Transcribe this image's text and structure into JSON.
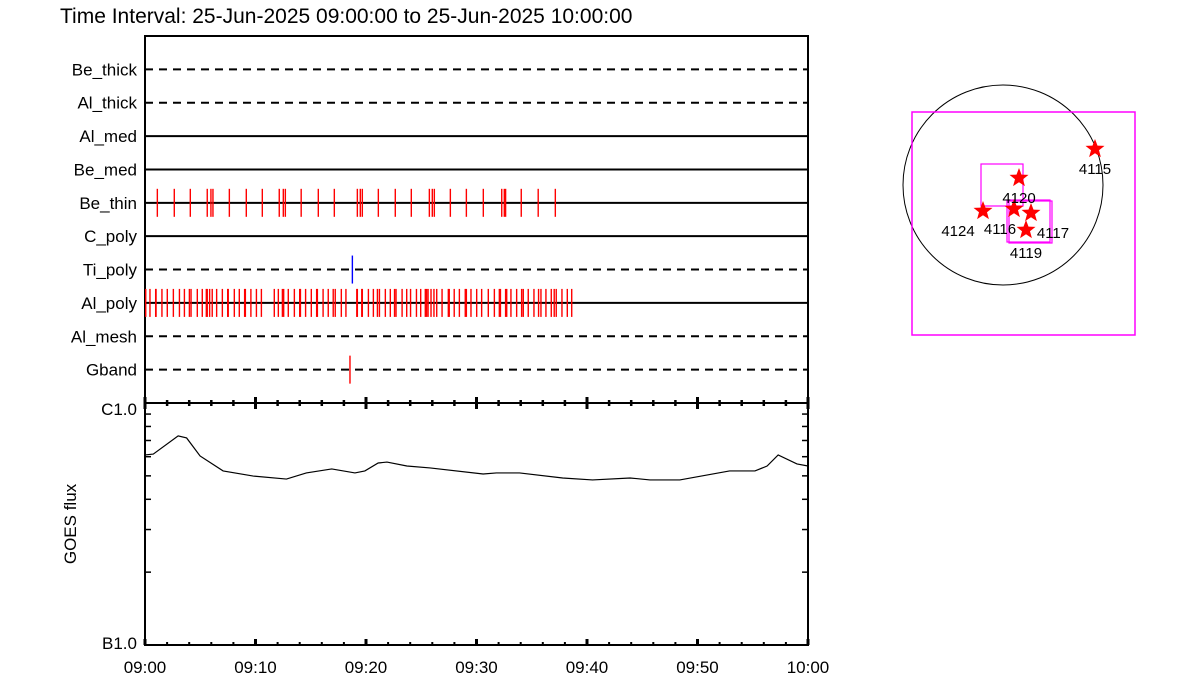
{
  "title": "Time Interval: 25-Jun-2025 09:00:00 to 25-Jun-2025 10:00:00",
  "colors": {
    "axis": "#000000",
    "tick_red": "#ff0000",
    "tick_blue": "#0000ff",
    "box": "#ff00ff",
    "star": "#ff0000"
  },
  "chart_data": [
    {
      "type": "scatter",
      "subtype": "event-timeline",
      "xlim": [
        "09:00:00",
        "10:00:00"
      ],
      "rows": [
        {
          "label": "Be_thick",
          "line": "dashed",
          "events": []
        },
        {
          "label": "Al_thick",
          "line": "dashed",
          "events": []
        },
        {
          "label": "Al_med",
          "line": "solid",
          "events": []
        },
        {
          "label": "Be_med",
          "line": "solid",
          "events": []
        },
        {
          "label": "Be_thin",
          "line": "solid",
          "color": "#ff0000",
          "events": [
            "09:01:07",
            "09:02:39",
            "09:04:06",
            "09:05:38",
            "09:05:58",
            "09:06:09",
            "09:07:38",
            "09:09:10",
            "09:10:37",
            "09:12:09",
            "09:12:31",
            "09:12:42",
            "09:14:08",
            "09:15:41",
            "09:17:08",
            "09:19:13",
            "09:19:29",
            "09:19:40",
            "09:21:07",
            "09:22:39",
            "09:24:06",
            "09:25:44",
            "09:26:00",
            "09:26:11",
            "09:27:38",
            "09:29:05",
            "09:30:37",
            "09:32:17",
            "09:32:31",
            "09:32:38",
            "09:34:03",
            "09:35:35",
            "09:37:08"
          ]
        },
        {
          "label": "C_poly",
          "line": "solid",
          "events": []
        },
        {
          "label": "Ti_poly",
          "line": "dashed",
          "color": "#0000ff",
          "events": [
            "09:18:46"
          ]
        },
        {
          "label": "Al_poly",
          "line": "solid",
          "color": "#ff0000",
          "events": [
            "09:00:04",
            "09:00:27",
            "09:00:58",
            "09:01:00",
            "09:01:32",
            "09:02:01",
            "09:02:34",
            "09:03:07",
            "09:03:34",
            "09:04:01",
            "09:04:10",
            "09:04:44",
            "09:05:11",
            "09:05:33",
            "09:05:38",
            "09:05:51",
            "09:06:05",
            "09:06:29",
            "09:07:00",
            "09:07:29",
            "09:07:32",
            "09:08:05",
            "09:08:32",
            "09:09:01",
            "09:09:05",
            "09:09:35",
            "09:10:05",
            "09:10:32",
            "09:11:42",
            "09:12:04",
            "09:12:26",
            "09:12:33",
            "09:12:58",
            "09:13:31",
            "09:14:00",
            "09:14:04",
            "09:14:32",
            "09:15:03",
            "09:15:32",
            "09:15:36",
            "09:16:07",
            "09:16:35",
            "09:17:02",
            "09:17:13",
            "09:17:46",
            "09:18:11",
            "09:19:10",
            "09:19:13",
            "09:19:37",
            "09:19:40",
            "09:20:13",
            "09:20:40",
            "09:21:02",
            "09:21:13",
            "09:21:45",
            "09:22:12",
            "09:22:35",
            "09:22:43",
            "09:23:16",
            "09:23:41",
            "09:24:02",
            "09:24:34",
            "09:24:57",
            "09:25:22",
            "09:25:29",
            "09:25:37",
            "09:25:53",
            "09:26:09",
            "09:26:24",
            "09:26:53",
            "09:27:27",
            "09:27:32",
            "09:27:59",
            "09:28:27",
            "09:28:59",
            "09:29:05",
            "09:29:30",
            "09:30:01",
            "09:30:28",
            "09:31:04",
            "09:31:37",
            "09:32:04",
            "09:32:10",
            "09:32:38",
            "09:32:44",
            "09:33:07",
            "09:33:38",
            "09:34:05",
            "09:34:14",
            "09:34:41",
            "09:35:12",
            "09:35:37",
            "09:35:50",
            "09:36:17",
            "09:36:46",
            "09:37:02",
            "09:37:13",
            "09:37:44",
            "09:38:13",
            "09:38:37"
          ]
        },
        {
          "label": "Al_mesh",
          "line": "dashed",
          "events": []
        },
        {
          "label": "Gband",
          "line": "dashed",
          "color": "#ff0000",
          "events": [
            "09:18:33"
          ]
        }
      ]
    },
    {
      "type": "line",
      "ylabel": "GOES flux",
      "yscale": "log",
      "ylim": [
        1e-07,
        1e-06
      ],
      "ytick_labels": [
        {
          "value": 1e-06,
          "label": "C1.0"
        },
        {
          "value": 1e-07,
          "label": "B1.0"
        }
      ],
      "xlim": [
        "09:00:00",
        "10:00:00"
      ],
      "xtick_labels": [
        "09:00",
        "09:10",
        "09:20",
        "09:30",
        "09:40",
        "09:50",
        "10:00"
      ],
      "x": [
        "09:00:00",
        "09:00:45",
        "09:03:00",
        "09:03:46",
        "09:04:59",
        "09:07:04",
        "09:09:48",
        "09:12:48",
        "09:14:36",
        "09:16:54",
        "09:19:00",
        "09:19:54",
        "09:21:06",
        "09:21:54",
        "09:23:42",
        "09:25:48",
        "09:30:36",
        "09:31:48",
        "09:33:54",
        "09:37:48",
        "09:40:30",
        "09:43:54",
        "09:45:42",
        "09:48:24",
        "09:52:54",
        "09:55:12",
        "09:56:18",
        "09:57:18",
        "09:59:00",
        "10:00:00"
      ],
      "y": [
        6.1e-07,
        6.15e-07,
        7.31e-07,
        7.17e-07,
        6.04e-07,
        5.24e-07,
        4.99e-07,
        4.85e-07,
        5.14e-07,
        5.34e-07,
        5.14e-07,
        5.24e-07,
        5.65e-07,
        5.7e-07,
        5.49e-07,
        5.39e-07,
        5.09e-07,
        5.14e-07,
        5.14e-07,
        4.9e-07,
        4.81e-07,
        4.9e-07,
        4.81e-07,
        4.81e-07,
        5.24e-07,
        5.24e-07,
        5.49e-07,
        6.1e-07,
        5.6e-07,
        5.49e-07
      ]
    }
  ],
  "context_map": {
    "targets": [
      {
        "label": "4115"
      },
      {
        "label": "4120"
      },
      {
        "label": "4124"
      },
      {
        "label": "4116"
      },
      {
        "label": "4117"
      },
      {
        "label": "4119"
      }
    ]
  }
}
